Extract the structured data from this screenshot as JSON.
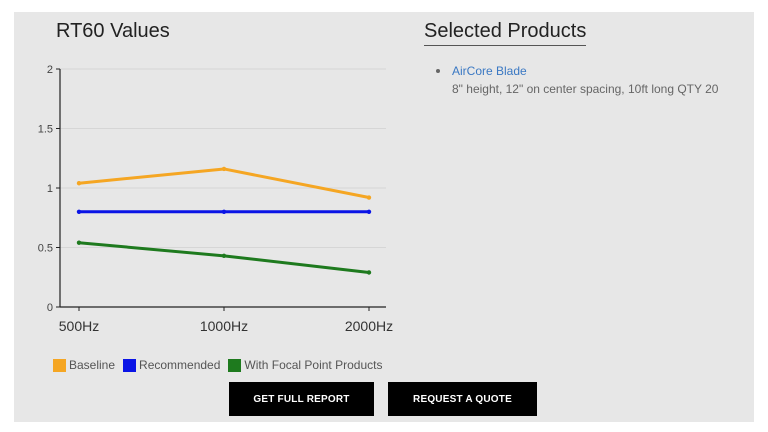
{
  "chart_title": "RT60 Values",
  "products_title": "Selected Products",
  "products": [
    {
      "name": "AirCore Blade",
      "description": "8\" height, 12\" on center spacing, 10ft long QTY 20"
    }
  ],
  "buttons": {
    "report_label": "GET FULL REPORT",
    "quote_label": "REQUEST A QUOTE"
  },
  "chart_data": {
    "type": "line",
    "title": "RT60 Values",
    "xlabel": "",
    "ylabel": "",
    "categories": [
      "500Hz",
      "1000Hz",
      "2000Hz"
    ],
    "ylim": [
      0,
      2
    ],
    "yticks": [
      0,
      0.5,
      1,
      1.5,
      2
    ],
    "ytick_labels": [
      "0",
      "0.5",
      "1",
      "1.5",
      "2"
    ],
    "grid": true,
    "legend_position": "bottom-left",
    "series": [
      {
        "name": "Baseline",
        "color": "#f5a623",
        "values": [
          1.04,
          1.16,
          0.92
        ]
      },
      {
        "name": "Recommended",
        "color": "#0a14e6",
        "values": [
          0.8,
          0.8,
          0.8
        ]
      },
      {
        "name": "With Focal Point Products",
        "color": "#1e7a1e",
        "values": [
          0.54,
          0.43,
          0.29
        ]
      }
    ]
  }
}
